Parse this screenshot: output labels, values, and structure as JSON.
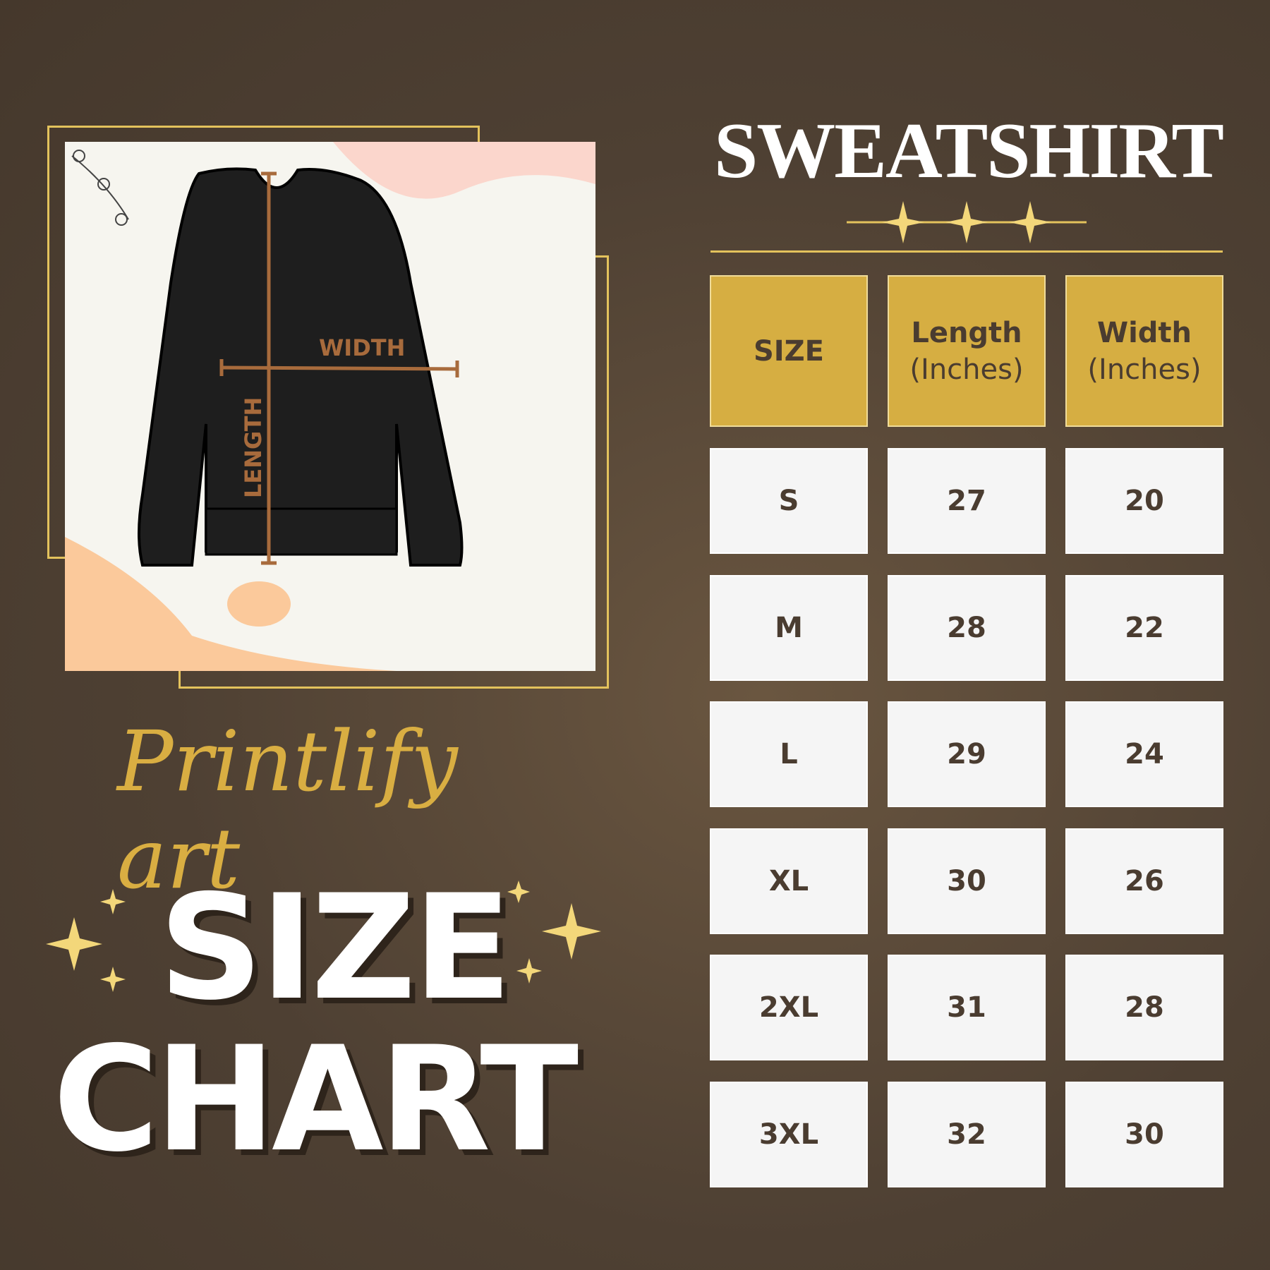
{
  "title": "SWEATSHIRT",
  "brand": "Printlify art",
  "headline": {
    "line1": "SIZE",
    "line2": "CHART"
  },
  "diagram": {
    "width_label": "WIDTH",
    "length_label": "LENGTH"
  },
  "colors": {
    "background": "#4e4033",
    "gold": "#d6ae42",
    "cell": "#f5f5f5",
    "text": "#4a3c30",
    "measure": "#a86b3c"
  },
  "table": {
    "headers": [
      {
        "main": "SIZE",
        "sub": ""
      },
      {
        "main": "Length",
        "sub": "(Inches)"
      },
      {
        "main": "Width",
        "sub": "(Inches)"
      }
    ],
    "rows": [
      [
        "S",
        "27",
        "20"
      ],
      [
        "M",
        "28",
        "22"
      ],
      [
        "L",
        "29",
        "24"
      ],
      [
        "XL",
        "30",
        "26"
      ],
      [
        "2XL",
        "31",
        "28"
      ],
      [
        "3XL",
        "32",
        "30"
      ]
    ]
  }
}
